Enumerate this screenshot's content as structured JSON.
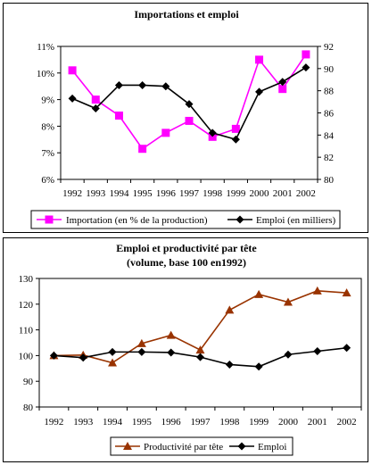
{
  "chart_data": [
    {
      "type": "line",
      "title": "Importations et emploi",
      "categories": [
        "1992",
        "1993",
        "1994",
        "1995",
        "1996",
        "1997",
        "1998",
        "1999",
        "2000",
        "2001",
        "2002"
      ],
      "y_left": {
        "ticks": [
          "6%",
          "7%",
          "8%",
          "9%",
          "10%",
          "11%"
        ],
        "min": 6,
        "max": 11,
        "unit": "%"
      },
      "y_right": {
        "ticks": [
          "80",
          "82",
          "84",
          "86",
          "88",
          "90",
          "92"
        ],
        "min": 80,
        "max": 92
      },
      "series": [
        {
          "name": "Importation (en % de la production)",
          "axis": "left",
          "color": "#ff00ff",
          "marker": "square",
          "values": [
            10.1,
            9.0,
            8.4,
            7.15,
            7.75,
            8.2,
            7.6,
            7.9,
            10.5,
            9.4,
            10.7
          ]
        },
        {
          "name": "Emploi (en milliers)",
          "axis": "right",
          "color": "#000000",
          "marker": "diamond",
          "values": [
            87.3,
            86.4,
            88.5,
            88.5,
            88.4,
            86.8,
            84.2,
            83.6,
            87.9,
            88.8,
            90.1
          ]
        }
      ],
      "legend_position": "bottom"
    },
    {
      "type": "line",
      "title": "Emploi et productivité par tête",
      "subtitle": "(volume, base 100 en1992)",
      "categories": [
        "1992",
        "1993",
        "1994",
        "1995",
        "1996",
        "1997",
        "1998",
        "1999",
        "2000",
        "2001",
        "2002"
      ],
      "y": {
        "ticks": [
          "80",
          "90",
          "100",
          "110",
          "120",
          "130"
        ],
        "min": 80,
        "max": 130
      },
      "series": [
        {
          "name": "Productivité par tête",
          "color": "#993300",
          "marker": "triangle",
          "values": [
            100,
            100.2,
            97.2,
            104.7,
            107.9,
            102.2,
            117.7,
            123.8,
            120.8,
            125.2,
            124.4
          ]
        },
        {
          "name": "Emploi",
          "color": "#000000",
          "marker": "diamond",
          "values": [
            100,
            99.2,
            101.4,
            101.4,
            101.2,
            99.4,
            96.5,
            95.7,
            100.4,
            101.7,
            103.0
          ]
        }
      ],
      "legend_position": "bottom"
    }
  ]
}
